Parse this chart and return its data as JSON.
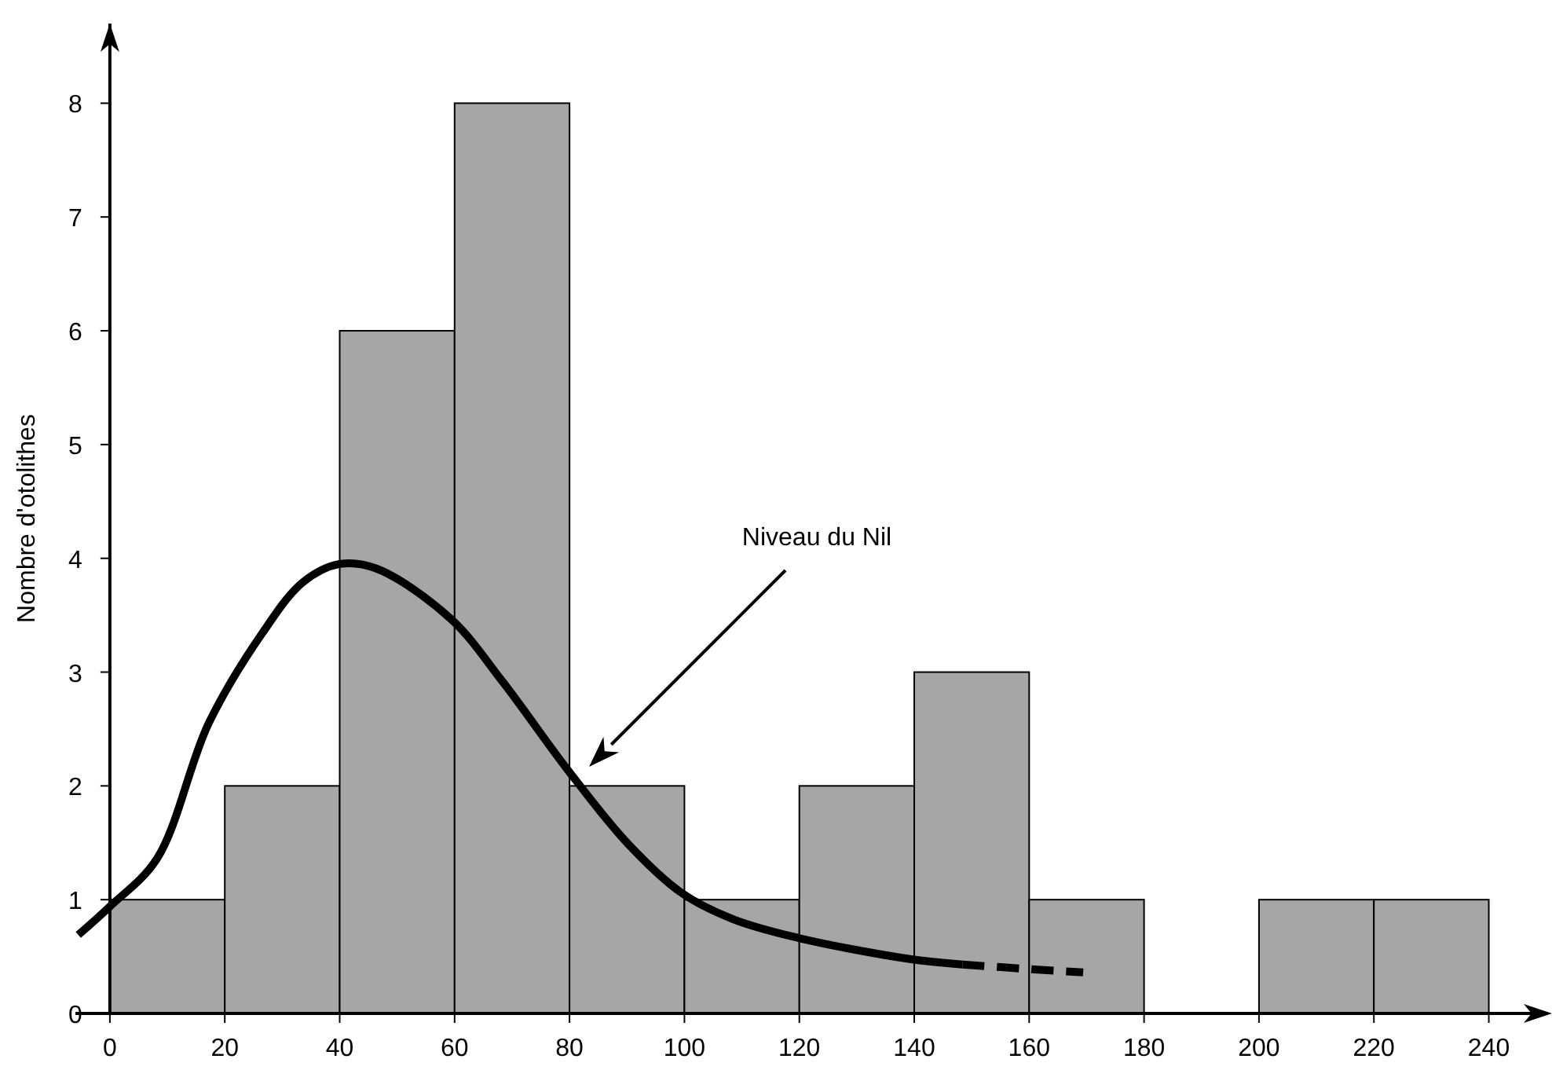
{
  "chart_data": {
    "type": "histogram",
    "ylabel": "Nombre d'otolithes",
    "bins": [
      0,
      20,
      40,
      60,
      80,
      100,
      120,
      140,
      160,
      180,
      200,
      220,
      240
    ],
    "values": [
      1,
      2,
      6,
      8,
      2,
      1,
      2,
      3,
      1,
      0,
      1,
      1
    ],
    "color": "#a6a6a6",
    "series": [
      {
        "type": "line",
        "color": "#000000",
        "line_style": "solid",
        "x": [
          -5.5,
          0,
          8.2,
          17.2,
          26.5,
          33.6,
          40,
          46.4,
          59.3,
          68.3,
          79.7,
          90.2,
          99.5,
          108.4,
          119.3,
          139,
          148.4
        ],
        "values": [
          0.69,
          0.94,
          1.36,
          2.55,
          3.34,
          3.79,
          3.95,
          3.91,
          3.47,
          2.92,
          2.14,
          1.49,
          1.06,
          0.83,
          0.67,
          0.48,
          0.43
        ]
      },
      {
        "type": "line",
        "color": "#000000",
        "line_style": "dashed",
        "x": [
          148.4,
          160,
          169.4
        ],
        "values": [
          0.43,
          0.39,
          0.36
        ]
      }
    ],
    "annotations": [
      "Niveau du Nil"
    ],
    "xlim": [
      -6,
      251
    ],
    "ylim": [
      0,
      8.7
    ],
    "xticks": [
      0,
      20,
      40,
      60,
      80,
      100,
      120,
      140,
      160,
      180,
      200,
      220,
      240
    ],
    "yticks": [
      0,
      1,
      2,
      3,
      4,
      5,
      6,
      7,
      8
    ],
    "grid": false,
    "marker": "none"
  }
}
